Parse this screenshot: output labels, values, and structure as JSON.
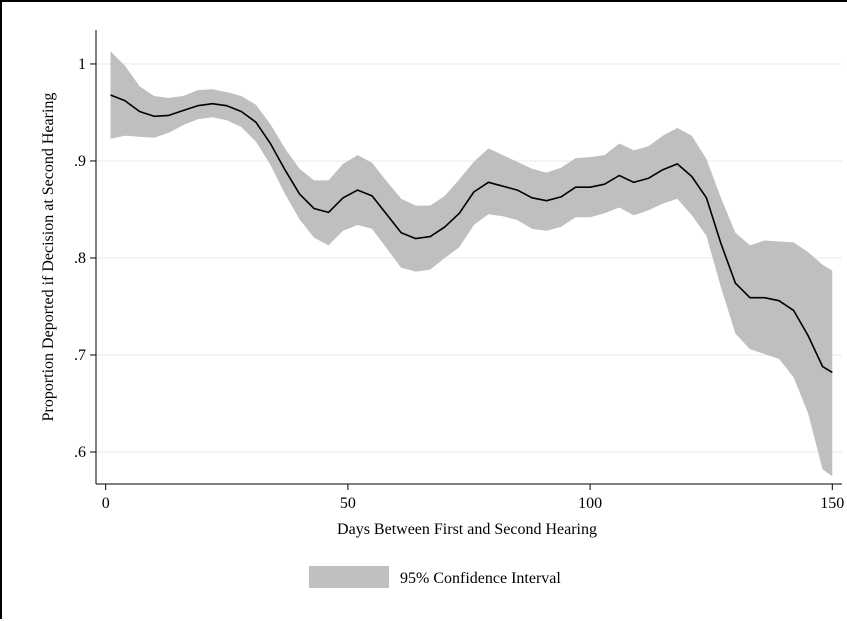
{
  "chart_data": {
    "type": "line",
    "title": "",
    "xlabel": "Days Between First and Second Hearing",
    "ylabel": "Proportion Deported if Decision at Second Hearing",
    "xlim": [
      -2,
      152
    ],
    "ylim": [
      0.567,
      1.035
    ],
    "x_ticks": [
      0,
      50,
      100,
      150
    ],
    "x_tick_labels": [
      "0",
      "50",
      "100",
      "150"
    ],
    "y_ticks": [
      0.6,
      0.7,
      0.8,
      0.9,
      1.0
    ],
    "y_tick_labels": [
      ".6",
      ".7",
      ".8",
      ".9",
      "1"
    ],
    "grid": "horizontal",
    "legend": {
      "placement": "bottom",
      "entries": [
        "95% Confidence Interval"
      ]
    },
    "colors": {
      "band": "#bfbfbf",
      "line": "#000000",
      "grid": "#e8e8e8"
    },
    "series": [
      {
        "type": "line",
        "x": [
          1,
          4,
          7,
          10,
          13,
          16,
          19,
          22,
          25,
          28,
          31,
          34,
          37,
          40,
          43,
          46,
          49,
          52,
          55,
          58,
          61,
          64,
          67,
          70,
          73,
          76,
          79,
          82,
          85,
          88,
          91,
          94,
          97,
          100,
          103,
          106,
          109,
          112,
          115,
          118,
          121,
          124,
          127,
          130,
          133,
          136,
          139,
          142,
          145,
          148,
          150
        ],
        "values": [
          0.968,
          0.962,
          0.951,
          0.946,
          0.947,
          0.952,
          0.957,
          0.959,
          0.957,
          0.951,
          0.94,
          0.918,
          0.891,
          0.866,
          0.851,
          0.847,
          0.862,
          0.87,
          0.864,
          0.845,
          0.826,
          0.82,
          0.822,
          0.832,
          0.846,
          0.868,
          0.878,
          0.874,
          0.87,
          0.862,
          0.859,
          0.863,
          0.873,
          0.873,
          0.876,
          0.885,
          0.878,
          0.882,
          0.891,
          0.897,
          0.884,
          0.862,
          0.815,
          0.774,
          0.759,
          0.759,
          0.756,
          0.746,
          0.72,
          0.688,
          0.682
        ]
      },
      {
        "type": "area",
        "name": "95% Confidence Interval",
        "x": [
          1,
          4,
          7,
          10,
          13,
          16,
          19,
          22,
          25,
          28,
          31,
          34,
          37,
          40,
          43,
          46,
          49,
          52,
          55,
          58,
          61,
          64,
          67,
          70,
          73,
          76,
          79,
          82,
          85,
          88,
          91,
          94,
          97,
          100,
          103,
          106,
          109,
          112,
          115,
          118,
          121,
          124,
          127,
          130,
          133,
          136,
          139,
          142,
          145,
          148,
          150
        ],
        "upper": [
          1.013,
          0.998,
          0.977,
          0.967,
          0.965,
          0.967,
          0.973,
          0.974,
          0.971,
          0.967,
          0.958,
          0.938,
          0.913,
          0.892,
          0.88,
          0.88,
          0.897,
          0.906,
          0.898,
          0.879,
          0.861,
          0.854,
          0.854,
          0.864,
          0.881,
          0.899,
          0.913,
          0.906,
          0.899,
          0.892,
          0.888,
          0.893,
          0.903,
          0.904,
          0.906,
          0.918,
          0.911,
          0.915,
          0.926,
          0.934,
          0.926,
          0.902,
          0.862,
          0.826,
          0.813,
          0.818,
          0.817,
          0.816,
          0.806,
          0.793,
          0.787
        ],
        "lower": [
          0.923,
          0.926,
          0.925,
          0.924,
          0.929,
          0.937,
          0.943,
          0.945,
          0.942,
          0.935,
          0.92,
          0.896,
          0.866,
          0.84,
          0.821,
          0.813,
          0.828,
          0.834,
          0.83,
          0.81,
          0.79,
          0.786,
          0.788,
          0.8,
          0.811,
          0.834,
          0.845,
          0.843,
          0.839,
          0.83,
          0.828,
          0.832,
          0.842,
          0.842,
          0.846,
          0.852,
          0.844,
          0.849,
          0.856,
          0.861,
          0.844,
          0.823,
          0.77,
          0.722,
          0.706,
          0.701,
          0.696,
          0.677,
          0.64,
          0.582,
          0.575
        ]
      }
    ]
  }
}
